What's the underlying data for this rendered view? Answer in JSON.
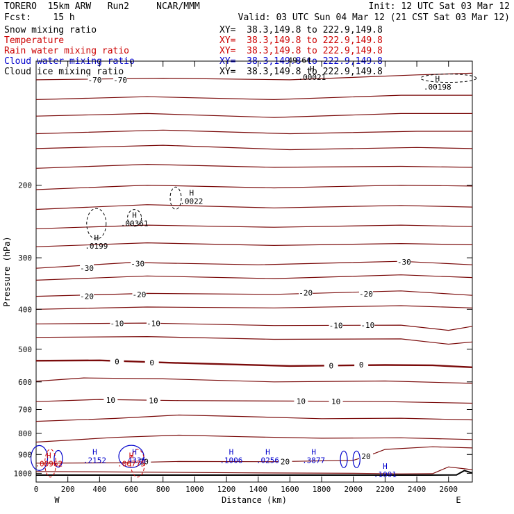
{
  "header": {
    "model": "TORERO  15km ARW   Run2     NCAR/MMM",
    "init": "Init: 12 UTC Sat 03 Mar 12",
    "fcst": "Fcst:    15 h",
    "valid": "Valid: 03 UTC Sun 04 Mar 12 (21 CST Sat 03 Mar 12)"
  },
  "legend": [
    {
      "label": "Snow mixing ratio",
      "color": "#000000",
      "xy": "XY=  38.3,149.8 to 222.9,149.8"
    },
    {
      "label": "Temperature",
      "color": "#cc0000",
      "xy": "XY=  38.3,149.8 to 222.9,149.8"
    },
    {
      "label": "Rain water mixing ratio",
      "color": "#cc0000",
      "xy": "XY=  38.3,149.8 to 222.9,149.8"
    },
    {
      "label": "Cloud water mixing ratio",
      "color": "#0000cc",
      "xy": "XY=  38.3,149.8 to 222.9,149.8"
    },
    {
      "label": "Cloud ice mixing ratio",
      "color": "#000000",
      "xy": "XY=  38.3,149.8 to 222.9,149.8"
    }
  ],
  "chart_data": {
    "type": "cross-section contour",
    "xlabel": "Distance (km)",
    "ylabel": "Pressure (hPa)",
    "xlim": [
      0,
      2750
    ],
    "ylim": [
      1050,
      100
    ],
    "y_scale": "log",
    "x_ticks": [
      0,
      200,
      400,
      600,
      800,
      1000,
      1200,
      1400,
      1600,
      1800,
      2000,
      2200,
      2400,
      2600
    ],
    "y_ticks": [
      200,
      300,
      400,
      500,
      600,
      700,
      800,
      900,
      1000
    ],
    "end_labels": {
      "left": "W",
      "right": "E"
    },
    "temperature_color": "#7a0a0a",
    "temperature_contours": [
      {
        "level": -70,
        "p": [
          [
            0,
            111
          ],
          [
            800,
            110
          ],
          [
            1600,
            111
          ],
          [
            2400,
            108
          ],
          [
            2750,
            107
          ]
        ]
      },
      {
        "level": null,
        "p": [
          [
            0,
            124
          ],
          [
            700,
            122
          ],
          [
            1500,
            124
          ],
          [
            2300,
            121
          ],
          [
            2750,
            121
          ]
        ]
      },
      {
        "level": null,
        "p": [
          [
            0,
            136
          ],
          [
            700,
            134
          ],
          [
            1500,
            137
          ],
          [
            2300,
            134
          ],
          [
            2750,
            134
          ]
        ]
      },
      {
        "level": null,
        "p": [
          [
            0,
            150
          ],
          [
            800,
            147
          ],
          [
            1600,
            150
          ],
          [
            2400,
            148
          ],
          [
            2750,
            148
          ]
        ]
      },
      {
        "level": null,
        "p": [
          [
            0,
            163
          ],
          [
            800,
            160
          ],
          [
            1600,
            164
          ],
          [
            2400,
            162
          ],
          [
            2750,
            163
          ]
        ]
      },
      {
        "level": null,
        "p": [
          [
            0,
            182
          ],
          [
            700,
            178
          ],
          [
            1500,
            181
          ],
          [
            2300,
            180
          ],
          [
            2750,
            181
          ]
        ]
      },
      {
        "level": null,
        "p": [
          [
            0,
            205
          ],
          [
            700,
            200
          ],
          [
            1500,
            203
          ],
          [
            2300,
            200
          ],
          [
            2750,
            201
          ]
        ]
      },
      {
        "level": null,
        "p": [
          [
            0,
            229
          ],
          [
            700,
            223
          ],
          [
            1500,
            227
          ],
          [
            2300,
            224
          ],
          [
            2750,
            226
          ]
        ]
      },
      {
        "level": null,
        "p": [
          [
            0,
            255
          ],
          [
            700,
            250
          ],
          [
            1500,
            253
          ],
          [
            2300,
            250
          ],
          [
            2750,
            252
          ]
        ]
      },
      {
        "level": null,
        "p": [
          [
            0,
            282
          ],
          [
            700,
            276
          ],
          [
            1500,
            280
          ],
          [
            2300,
            277
          ],
          [
            2750,
            279
          ]
        ]
      },
      {
        "level": -30,
        "p": [
          [
            0,
            318
          ],
          [
            600,
            308
          ],
          [
            1400,
            312
          ],
          [
            2300,
            306
          ],
          [
            2750,
            312
          ]
        ]
      },
      {
        "level": null,
        "p": [
          [
            0,
            340
          ],
          [
            700,
            332
          ],
          [
            1500,
            337
          ],
          [
            2300,
            330
          ],
          [
            2750,
            335
          ]
        ]
      },
      {
        "level": -20,
        "p": [
          [
            0,
            372
          ],
          [
            700,
            366
          ],
          [
            1500,
            368
          ],
          [
            2300,
            361
          ],
          [
            2750,
            370
          ]
        ]
      },
      {
        "level": null,
        "p": [
          [
            0,
            400
          ],
          [
            700,
            395
          ],
          [
            1500,
            397
          ],
          [
            2300,
            392
          ],
          [
            2750,
            397
          ]
        ]
      },
      {
        "level": -10,
        "p": [
          [
            0,
            434
          ],
          [
            700,
            432
          ],
          [
            1500,
            438
          ],
          [
            2300,
            437
          ],
          [
            2600,
            450
          ],
          [
            2750,
            440
          ]
        ]
      },
      {
        "level": null,
        "p": [
          [
            0,
            468
          ],
          [
            700,
            466
          ],
          [
            1500,
            473
          ],
          [
            2300,
            472
          ],
          [
            2600,
            486
          ],
          [
            2750,
            480
          ]
        ]
      },
      {
        "level": 0,
        "p": [
          [
            0,
            533
          ],
          [
            400,
            532
          ],
          [
            900,
            540
          ],
          [
            1600,
            549
          ],
          [
            2200,
            546
          ],
          [
            2500,
            547
          ],
          [
            2750,
            553
          ]
        ],
        "bold": true
      },
      {
        "level": null,
        "p": [
          [
            0,
            598
          ],
          [
            300,
            587
          ],
          [
            800,
            590
          ],
          [
            1500,
            600
          ],
          [
            2200,
            597
          ],
          [
            2750,
            605
          ]
        ]
      },
      {
        "level": 10,
        "p": [
          [
            0,
            670
          ],
          [
            400,
            662
          ],
          [
            900,
            666
          ],
          [
            1600,
            668
          ],
          [
            2200,
            670
          ],
          [
            2750,
            676
          ]
        ]
      },
      {
        "level": null,
        "p": [
          [
            0,
            748
          ],
          [
            500,
            736
          ],
          [
            900,
            722
          ],
          [
            1300,
            728
          ],
          [
            1800,
            737
          ],
          [
            2300,
            735
          ],
          [
            2750,
            742
          ]
        ]
      },
      {
        "level": null,
        "p": [
          [
            0,
            840
          ],
          [
            500,
            818
          ],
          [
            900,
            808
          ],
          [
            1300,
            815
          ],
          [
            1800,
            822
          ],
          [
            2300,
            820
          ],
          [
            2750,
            828
          ]
        ]
      },
      {
        "level": 20,
        "p": [
          [
            0,
            945
          ],
          [
            500,
            943
          ],
          [
            900,
            936
          ],
          [
            1500,
            937
          ],
          [
            2000,
            930
          ],
          [
            2100,
            905
          ],
          [
            2200,
            875
          ],
          [
            2500,
            862
          ],
          [
            2750,
            868
          ]
        ]
      },
      {
        "level": null,
        "p": [
          [
            0,
            990
          ],
          [
            600,
            993
          ],
          [
            1300,
            997
          ],
          [
            2000,
            1000
          ],
          [
            2300,
            1003
          ],
          [
            2500,
            1002
          ],
          [
            2600,
            965
          ],
          [
            2700,
            975
          ],
          [
            2750,
            980
          ]
        ]
      }
    ],
    "temperature_labels": [
      {
        "text": "-70",
        "x": 370,
        "p": 111
      },
      {
        "text": "-70",
        "x": 530,
        "p": 111
      },
      {
        "text": "-30",
        "x": 320,
        "p": 318
      },
      {
        "text": "-30",
        "x": 640,
        "p": 310
      },
      {
        "text": "-30",
        "x": 2320,
        "p": 307
      },
      {
        "text": "-20",
        "x": 320,
        "p": 372
      },
      {
        "text": "-20",
        "x": 650,
        "p": 368
      },
      {
        "text": "-20",
        "x": 1700,
        "p": 365
      },
      {
        "text": "-20",
        "x": 2080,
        "p": 367
      },
      {
        "text": "-10",
        "x": 510,
        "p": 433
      },
      {
        "text": "-10",
        "x": 740,
        "p": 433
      },
      {
        "text": "-10",
        "x": 1890,
        "p": 438
      },
      {
        "text": "-10",
        "x": 2090,
        "p": 437
      },
      {
        "text": "0",
        "x": 510,
        "p": 536
      },
      {
        "text": "0",
        "x": 730,
        "p": 539
      },
      {
        "text": "0",
        "x": 1860,
        "p": 548
      },
      {
        "text": "0",
        "x": 2050,
        "p": 545
      },
      {
        "text": "10",
        "x": 470,
        "p": 664
      },
      {
        "text": "10",
        "x": 740,
        "p": 666
      },
      {
        "text": "10",
        "x": 1670,
        "p": 668
      },
      {
        "text": "10",
        "x": 1890,
        "p": 669
      },
      {
        "text": "20",
        "x": 1570,
        "p": 936
      },
      {
        "text": "20",
        "x": 2080,
        "p": 910
      },
      {
        "text": "20",
        "x": 680,
        "p": 936
      }
    ],
    "maxima": [
      {
        "series": "snow",
        "x": 380,
        "p": 272,
        "value": ".0199"
      },
      {
        "series": "snow",
        "x": 620,
        "p": 240,
        "value": ".00361"
      },
      {
        "series": "snow",
        "x": 980,
        "p": 212,
        "value": ".0022"
      },
      {
        "series": "snow",
        "x": 1740,
        "p": 106,
        "value": ".00021"
      },
      {
        "series": "snow",
        "x": 2530,
        "p": 112,
        "value": ".00198"
      },
      {
        "series": "cloud_water",
        "x": 370,
        "p": 900,
        "value": ".2152"
      },
      {
        "series": "cloud_water",
        "x": 620,
        "p": 900,
        "value": ".4336"
      },
      {
        "series": "cloud_water",
        "x": 1230,
        "p": 900,
        "value": ".1006"
      },
      {
        "series": "cloud_water",
        "x": 1460,
        "p": 900,
        "value": ".0256"
      },
      {
        "series": "cloud_water",
        "x": 1750,
        "p": 900,
        "value": ".3877"
      },
      {
        "series": "cloud_water",
        "x": 2200,
        "p": 975,
        "value": ".1091"
      },
      {
        "series": "rain",
        "x": 80,
        "p": 918,
        "value": ".00962"
      },
      {
        "series": "rain",
        "x": 600,
        "p": 918,
        "value": ".00775"
      }
    ],
    "extra_labels": [
      {
        "text": "49.64",
        "x": 1660,
        "p": 101,
        "color": "#000000"
      }
    ]
  }
}
